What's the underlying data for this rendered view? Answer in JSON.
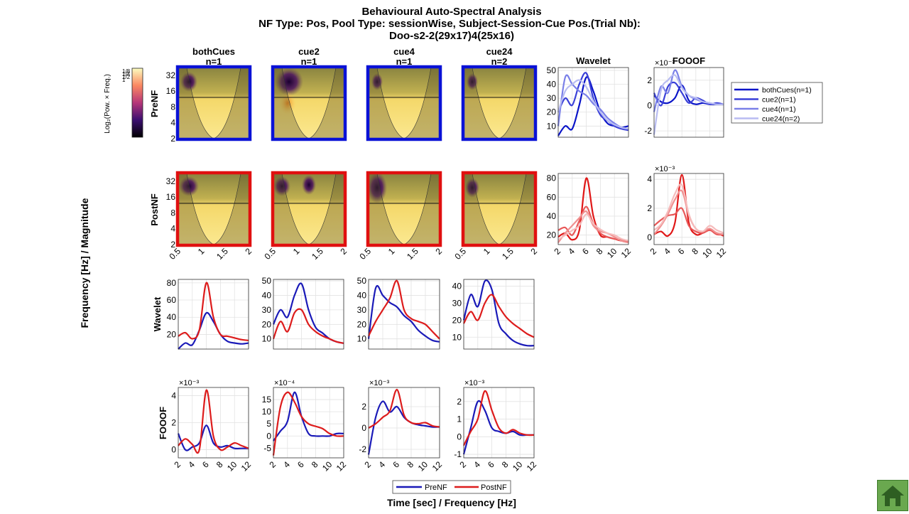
{
  "title": {
    "lines": [
      "Behavioural Auto-Spectral Analysis",
      "NF Type: Pos, Pool Type: sessionWise, Subject-Session-Cue Pos.(Trial Nb):",
      "Doo-s2-2(29x17)4(25x16)"
    ]
  },
  "ylabel_main": "Frequency [Hz] / Magnitude",
  "xlabel_main": "Time [sec] / Frequency [Hz]",
  "colorbar": {
    "label": "Log₂(Pow. × Freq.)",
    "ticks": [
      "1/8",
      "1/4",
      "1/2",
      "1"
    ]
  },
  "row_labels": {
    "pre": "PreNF",
    "post": "PostNF",
    "wavelet": "Wavelet",
    "fooof": "FOOOF"
  },
  "colors": {
    "pre_frame": "#0a12d6",
    "post_frame": "#e01010",
    "pre_line": "#1a1ab8",
    "post_line": "#dd1c1c",
    "home": "#6aa84f"
  },
  "legend_cues": [
    "bothCues(n=1)",
    "cue2(n=1)",
    "cue4(n=1)",
    "cue24(n=2)"
  ],
  "legend_prepost": [
    "PreNF",
    "PostNF"
  ],
  "chart_data": [
    {
      "id": "tf_maps",
      "type": "heatmap",
      "columns": [
        {
          "title": "bothCues",
          "subtitle": "n=1"
        },
        {
          "title": "cue2",
          "subtitle": "n=1"
        },
        {
          "title": "cue4",
          "subtitle": "n=1"
        },
        {
          "title": "cue24",
          "subtitle": "n=2"
        }
      ],
      "rows": [
        "PreNF",
        "PostNF"
      ],
      "yticks": [
        "32",
        "16",
        "8",
        "4",
        "2"
      ],
      "xticks": [
        "0.5",
        "1",
        "1.5",
        "2"
      ],
      "xlim": [
        0.5,
        2
      ],
      "ylim": [
        2,
        45
      ],
      "log_y": true
    },
    {
      "id": "pre_wavelet",
      "type": "line",
      "title": "Wavelet",
      "x": [
        2,
        3,
        4,
        5,
        6,
        7,
        8,
        9,
        10,
        11,
        12
      ],
      "xlim": [
        2,
        12
      ],
      "ylim": [
        2,
        52
      ],
      "yticks": [
        10,
        20,
        30,
        40,
        50
      ],
      "series": [
        {
          "name": "bothCues(n=1)",
          "values": [
            3,
            10,
            8,
            25,
            45,
            35,
            20,
            12,
            10,
            9,
            10
          ]
        },
        {
          "name": "cue2(n=1)",
          "values": [
            20,
            30,
            25,
            40,
            48,
            30,
            18,
            14,
            10,
            8,
            7
          ]
        },
        {
          "name": "cue4(n=1)",
          "values": [
            10,
            45,
            40,
            35,
            32,
            26,
            22,
            16,
            12,
            9,
            8
          ]
        },
        {
          "name": "cue24(n=2)",
          "values": [
            20,
            35,
            40,
            43,
            38,
            28,
            20,
            14,
            11,
            9,
            8
          ]
        }
      ]
    },
    {
      "id": "pre_fooof",
      "type": "line",
      "title": "FOOOF",
      "x": [
        2,
        3,
        4,
        5,
        6,
        7,
        8,
        9,
        10,
        11,
        12
      ],
      "xlim": [
        2,
        12
      ],
      "ylim": [
        -2.5,
        3
      ],
      "yticks": [
        -2,
        0,
        2
      ],
      "y_exponent": "×10⁻³",
      "series": [
        {
          "name": "bothCues(n=1)",
          "values": [
            0.8,
            0.3,
            0.2,
            0.6,
            1.6,
            0.4,
            0.1,
            0.2,
            0.1,
            0.1,
            0.1
          ]
        },
        {
          "name": "cue2(n=1)",
          "values": [
            1.0,
            0.0,
            1.5,
            1.8,
            1.0,
            0.2,
            0.6,
            0.4,
            0.1,
            0.2,
            0.1
          ]
        },
        {
          "name": "cue4(n=1)",
          "values": [
            -0.5,
            1.5,
            1.0,
            2.8,
            1.5,
            0.8,
            0.5,
            0.3,
            0.2,
            0.1,
            0.1
          ]
        },
        {
          "name": "cue24(n=2)",
          "values": [
            -2.3,
            1.2,
            2.0,
            2.4,
            1.4,
            0.8,
            0.6,
            0.3,
            0.2,
            0.1,
            0.1
          ]
        }
      ]
    },
    {
      "id": "post_wavelet",
      "type": "line",
      "x": [
        2,
        3,
        4,
        5,
        6,
        7,
        8,
        9,
        10,
        11,
        12
      ],
      "xlim": [
        2,
        12
      ],
      "ylim": [
        10,
        85
      ],
      "yticks": [
        20,
        40,
        60,
        80
      ],
      "series": [
        {
          "name": "bothCues(n=1)",
          "values": [
            18,
            22,
            15,
            25,
            80,
            40,
            20,
            18,
            16,
            14,
            13
          ]
        },
        {
          "name": "cue2(n=1)",
          "values": [
            25,
            28,
            20,
            35,
            50,
            32,
            22,
            18,
            16,
            15,
            14
          ]
        },
        {
          "name": "cue4(n=1)",
          "values": [
            12,
            22,
            30,
            38,
            45,
            30,
            24,
            22,
            18,
            14,
            12
          ]
        },
        {
          "name": "cue24(n=2)",
          "values": [
            15,
            20,
            25,
            30,
            42,
            32,
            26,
            22,
            20,
            16,
            14
          ]
        }
      ]
    },
    {
      "id": "post_fooof",
      "type": "line",
      "x": [
        2,
        3,
        4,
        5,
        6,
        7,
        8,
        9,
        10,
        11,
        12
      ],
      "xlim": [
        2,
        12
      ],
      "ylim": [
        -0.5,
        4.4
      ],
      "yticks": [
        0,
        2,
        4
      ],
      "y_exponent": "×10⁻³",
      "series": [
        {
          "name": "bothCues(n=1)",
          "values": [
            0.2,
            0.4,
            0.1,
            1.0,
            4.3,
            1.0,
            0.2,
            0.3,
            0.5,
            0.3,
            0.1
          ]
        },
        {
          "name": "cue2(n=1)",
          "values": [
            0.8,
            1.2,
            1.5,
            1.6,
            2.0,
            0.8,
            0.4,
            0.3,
            0.5,
            0.2,
            0.2
          ]
        },
        {
          "name": "cue4(n=1)",
          "values": [
            0.2,
            0.8,
            1.6,
            2.6,
            3.2,
            1.5,
            0.6,
            0.4,
            0.6,
            0.3,
            0.2
          ]
        },
        {
          "name": "cue24(n=2)",
          "values": [
            0.5,
            0.9,
            1.8,
            3.0,
            3.6,
            1.6,
            0.6,
            0.4,
            0.8,
            0.5,
            0.3
          ]
        }
      ]
    },
    {
      "id": "cmp_wavelet_bothcues",
      "type": "line",
      "x": [
        2,
        3,
        4,
        5,
        6,
        7,
        8,
        9,
        10,
        11,
        12
      ],
      "xlim": [
        2,
        12
      ],
      "ylim": [
        3,
        84
      ],
      "yticks": [
        20,
        40,
        60,
        80
      ],
      "series": [
        {
          "name": "PreNF",
          "values": [
            3,
            10,
            8,
            25,
            45,
            35,
            20,
            12,
            10,
            9,
            10
          ]
        },
        {
          "name": "PostNF",
          "values": [
            18,
            22,
            15,
            25,
            80,
            40,
            20,
            18,
            16,
            14,
            13
          ]
        }
      ]
    },
    {
      "id": "cmp_wavelet_cue2",
      "type": "line",
      "x": [
        2,
        3,
        4,
        5,
        6,
        7,
        8,
        9,
        10,
        11,
        12
      ],
      "xlim": [
        2,
        12
      ],
      "ylim": [
        3,
        51
      ],
      "yticks": [
        10,
        20,
        30,
        40,
        50
      ],
      "series": [
        {
          "name": "PreNF",
          "values": [
            20,
            30,
            25,
            40,
            48,
            30,
            18,
            14,
            10,
            8,
            7
          ]
        },
        {
          "name": "PostNF",
          "values": [
            10,
            22,
            15,
            28,
            30,
            20,
            15,
            12,
            10,
            8,
            7
          ]
        }
      ]
    },
    {
      "id": "cmp_wavelet_cue4",
      "type": "line",
      "x": [
        2,
        3,
        4,
        5,
        6,
        7,
        8,
        9,
        10,
        11,
        12
      ],
      "xlim": [
        2,
        12
      ],
      "ylim": [
        3,
        51
      ],
      "yticks": [
        10,
        20,
        30,
        40,
        50
      ],
      "series": [
        {
          "name": "PreNF",
          "values": [
            10,
            45,
            40,
            35,
            32,
            26,
            22,
            16,
            12,
            9,
            8
          ]
        },
        {
          "name": "PostNF",
          "values": [
            12,
            22,
            30,
            38,
            50,
            30,
            24,
            22,
            20,
            15,
            10
          ]
        }
      ]
    },
    {
      "id": "cmp_wavelet_cue24",
      "type": "line",
      "x": [
        2,
        3,
        4,
        5,
        6,
        7,
        8,
        9,
        10,
        11,
        12
      ],
      "xlim": [
        2,
        12
      ],
      "ylim": [
        3,
        44
      ],
      "yticks": [
        10,
        20,
        30,
        40
      ],
      "series": [
        {
          "name": "PreNF",
          "values": [
            20,
            35,
            28,
            43,
            38,
            18,
            12,
            8,
            6,
            5,
            5
          ]
        },
        {
          "name": "PostNF",
          "values": [
            18,
            25,
            20,
            30,
            35,
            28,
            22,
            18,
            15,
            12,
            10
          ]
        }
      ]
    },
    {
      "id": "cmp_fooof_bothcues",
      "type": "line",
      "x": [
        2,
        3,
        4,
        5,
        6,
        7,
        8,
        9,
        10,
        11,
        12
      ],
      "xlim": [
        2,
        12
      ],
      "ylim": [
        -0.6,
        4.6
      ],
      "yticks": [
        0,
        2,
        4
      ],
      "y_exponent": "×10⁻³",
      "series": [
        {
          "name": "PreNF",
          "values": [
            1.2,
            0.0,
            0.2,
            0.5,
            1.8,
            0.5,
            0.2,
            0.3,
            0.1,
            0.1,
            0.1
          ]
        },
        {
          "name": "PostNF",
          "values": [
            0.3,
            0.8,
            0.4,
            0.0,
            4.4,
            1.0,
            0.0,
            0.2,
            0.5,
            0.3,
            0.1
          ]
        }
      ]
    },
    {
      "id": "cmp_fooof_cue2",
      "type": "line",
      "x": [
        2,
        3,
        4,
        5,
        6,
        7,
        8,
        9,
        10,
        11,
        12
      ],
      "xlim": [
        2,
        12
      ],
      "ylim": [
        -9,
        20
      ],
      "yticks": [
        -5,
        0,
        5,
        10,
        15
      ],
      "y_exponent": "×10⁻⁴",
      "series": [
        {
          "name": "PreNF",
          "values": [
            -2,
            2,
            6,
            18,
            8,
            1,
            0,
            0,
            0,
            1,
            1
          ]
        },
        {
          "name": "PostNF",
          "values": [
            -8,
            12,
            18,
            14,
            8,
            5,
            4,
            3,
            1,
            0,
            0
          ]
        }
      ]
    },
    {
      "id": "cmp_fooof_cue4",
      "type": "line",
      "x": [
        2,
        3,
        4,
        5,
        6,
        7,
        8,
        9,
        10,
        11,
        12
      ],
      "xlim": [
        2,
        12
      ],
      "ylim": [
        -2.8,
        3.8
      ],
      "yticks": [
        -2,
        0,
        2
      ],
      "y_exponent": "×10⁻³",
      "series": [
        {
          "name": "PreNF",
          "values": [
            -2.5,
            1.0,
            2.5,
            1.5,
            2.0,
            1.0,
            0.5,
            0.3,
            0.2,
            0.1,
            0.1
          ]
        },
        {
          "name": "PostNF",
          "values": [
            0.0,
            0.4,
            1.0,
            1.6,
            3.6,
            1.2,
            0.5,
            0.4,
            0.5,
            0.2,
            0.1
          ]
        }
      ]
    },
    {
      "id": "cmp_fooof_cue24",
      "type": "line",
      "x": [
        2,
        3,
        4,
        5,
        6,
        7,
        8,
        9,
        10,
        11,
        12
      ],
      "xlim": [
        2,
        12
      ],
      "ylim": [
        -1.2,
        2.8
      ],
      "yticks": [
        -1,
        0,
        1,
        2
      ],
      "y_exponent": "×10⁻³",
      "series": [
        {
          "name": "PreNF",
          "values": [
            -1.0,
            0.5,
            2.0,
            1.5,
            0.5,
            0.3,
            0.2,
            0.3,
            0.1,
            0.1,
            0.1
          ]
        },
        {
          "name": "PostNF",
          "values": [
            -0.5,
            0.3,
            1.0,
            2.6,
            1.5,
            0.5,
            0.2,
            0.4,
            0.2,
            0.1,
            0.1
          ]
        }
      ]
    }
  ]
}
